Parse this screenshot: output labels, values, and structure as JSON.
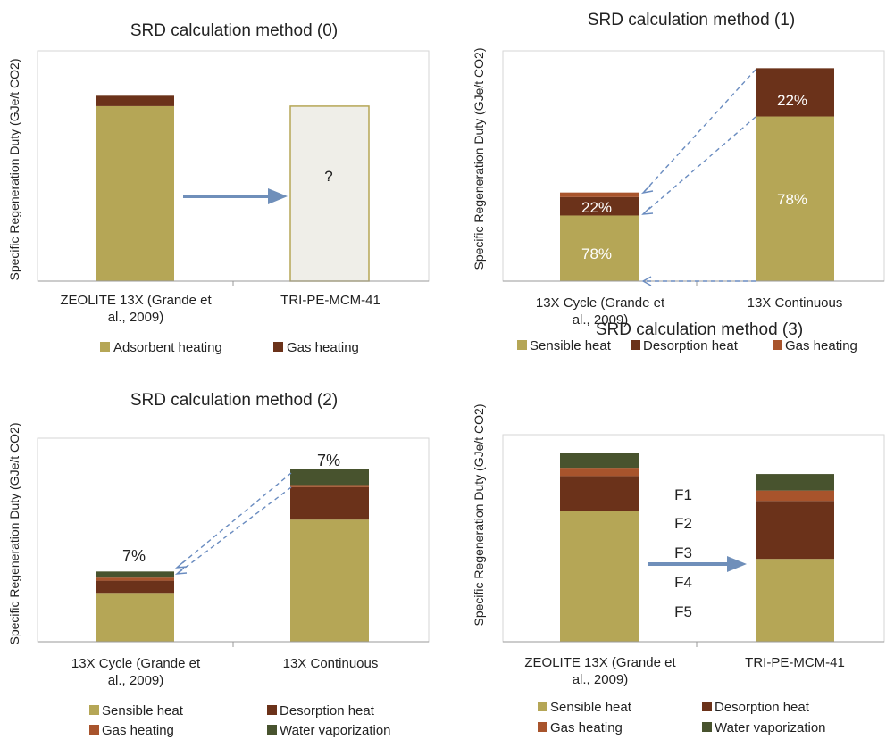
{
  "panels": [
    {
      "title": "SRD calculation method (0)",
      "ylabel": "Specific Regeneration Duty (GJe/t CO2)",
      "categories": [
        "ZEOLITE 13X (Grande et al., 2009)",
        "TRI-PE-MCM-41"
      ],
      "legend": [
        {
          "name": "Adsorbent heating",
          "color": "#b5a656"
        },
        {
          "name": "Gas heating",
          "color": "#6b321a"
        }
      ],
      "unknown_label": "?"
    },
    {
      "title": "SRD calculation method (1)",
      "ylabel": "Specific Regeneration Duty (GJe/t CO2)",
      "categories": [
        "13X Cycle (Grande et al., 2009)",
        "13X Continuous"
      ],
      "legend": [
        {
          "name": "Sensible heat",
          "color": "#b5a656"
        },
        {
          "name": "Desorption heat",
          "color": "#6b321a"
        },
        {
          "name": "Gas heating",
          "color": "#a8542c"
        }
      ],
      "bar_labels": [
        "22%",
        "78%",
        "22%",
        "78%"
      ]
    },
    {
      "title": "SRD calculation method (2)",
      "ylabel": "Specific Regeneration Duty (GJe/t CO2)",
      "categories": [
        "13X Cycle (Grande et al., 2009)",
        "13X Continuous"
      ],
      "legend": [
        {
          "name": "Sensible heat",
          "color": "#b5a656"
        },
        {
          "name": "Desorption heat",
          "color": "#6b321a"
        },
        {
          "name": "Gas heating",
          "color": "#a8542c"
        },
        {
          "name": "Water vaporization",
          "color": "#48532e"
        }
      ],
      "bar_labels": [
        "7%",
        "7%"
      ]
    },
    {
      "title": "SRD calculation method (3)",
      "ylabel": "Specific Regeneration Duty (GJe/t CO2)",
      "categories": [
        "ZEOLITE 13X (Grande et al., 2009)",
        "TRI-PE-MCM-41"
      ],
      "legend": [
        {
          "name": "Sensible heat",
          "color": "#b5a656"
        },
        {
          "name": "Desorption heat",
          "color": "#6b321a"
        },
        {
          "name": "Gas heating",
          "color": "#a8542c"
        },
        {
          "name": "Water vaporization",
          "color": "#48532e"
        }
      ],
      "factors": [
        "F1",
        "F2",
        "F3",
        "F4",
        "F5"
      ]
    }
  ],
  "chart_data": [
    {
      "type": "bar",
      "stacked": true,
      "title": "SRD calculation method (0)",
      "ylabel": "Specific Regeneration Duty (GJe/t CO2)",
      "categories": [
        "ZEOLITE 13X (Grande et al., 2009)",
        "TRI-PE-MCM-41"
      ],
      "ylim": [
        0,
        100
      ],
      "grid": false,
      "legend_position": "bottom",
      "series": [
        {
          "name": "Adsorbent heating",
          "values": [
            76,
            null
          ]
        },
        {
          "name": "Gas heating",
          "values": [
            4.5,
            null
          ]
        }
      ],
      "unknown_bar": {
        "category": "TRI-PE-MCM-41",
        "total": 76,
        "label": "?"
      }
    },
    {
      "type": "bar",
      "stacked": true,
      "title": "SRD calculation method (1)",
      "ylabel": "Specific Regeneration Duty (GJe/t CO2)",
      "categories": [
        "13X Cycle (Grande et al., 2009)",
        "13X Continuous"
      ],
      "ylim": [
        0,
        100
      ],
      "grid": false,
      "legend_position": "bottom",
      "series": [
        {
          "name": "Sensible heat",
          "values": [
            28.5,
            71.5
          ]
        },
        {
          "name": "Desorption heat",
          "values": [
            8,
            21
          ]
        },
        {
          "name": "Gas heating",
          "values": [
            2,
            0
          ]
        }
      ],
      "annotations": [
        "22%",
        "78%",
        "22%",
        "78%"
      ]
    },
    {
      "type": "bar",
      "stacked": true,
      "title": "SRD calculation method (2)",
      "ylabel": "Specific Regeneration Duty (GJe/t CO2)",
      "categories": [
        "13X Cycle (Grande et al., 2009)",
        "13X Continuous"
      ],
      "ylim": [
        0,
        100
      ],
      "grid": false,
      "legend_position": "bottom",
      "series": [
        {
          "name": "Sensible heat",
          "values": [
            24,
            60
          ]
        },
        {
          "name": "Desorption heat",
          "values": [
            6,
            16
          ]
        },
        {
          "name": "Gas heating",
          "values": [
            1.5,
            1
          ]
        },
        {
          "name": "Water vaporization",
          "values": [
            3,
            8
          ]
        }
      ],
      "annotations": [
        "7%",
        "7%"
      ]
    },
    {
      "type": "bar",
      "stacked": true,
      "title": "SRD calculation method (3)",
      "ylabel": "Specific Regeneration Duty (GJe/t CO2)",
      "categories": [
        "ZEOLITE 13X (Grande et al., 2009)",
        "TRI-PE-MCM-41"
      ],
      "ylim": [
        0,
        100
      ],
      "grid": false,
      "legend_position": "bottom",
      "series": [
        {
          "name": "Sensible heat",
          "values": [
            63,
            40
          ]
        },
        {
          "name": "Desorption heat",
          "values": [
            17,
            28
          ]
        },
        {
          "name": "Gas heating",
          "values": [
            4,
            5
          ]
        },
        {
          "name": "Water vaporization",
          "values": [
            7,
            8
          ]
        }
      ],
      "annotations": [
        "F1",
        "F2",
        "F3",
        "F4",
        "F5"
      ]
    }
  ]
}
